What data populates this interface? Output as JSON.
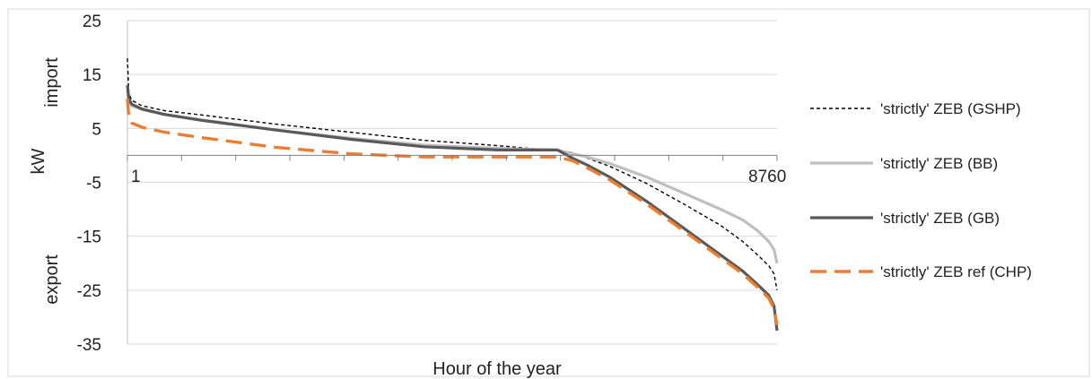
{
  "chart_data": {
    "type": "line",
    "title": "",
    "xlabel": "Hour of the year",
    "ylabel": "kW",
    "ylabel_upper": "import",
    "ylabel_lower": "export",
    "xlim": [
      1,
      8760
    ],
    "ylim": [
      -35,
      25
    ],
    "yticks": [
      25,
      15,
      5,
      -5,
      -15,
      -25,
      -35
    ],
    "xtick_labels": [
      "1",
      "8760"
    ],
    "grid": "horizontal",
    "legend_position": "right",
    "series": [
      {
        "name": "'strictly' ZEB (GSHP)",
        "color": "#000000",
        "style": "dotted",
        "points": [
          [
            1,
            18.0
          ],
          [
            20,
            11.5
          ],
          [
            60,
            10.2
          ],
          [
            200,
            9.2
          ],
          [
            500,
            8.3
          ],
          [
            1000,
            7.5
          ],
          [
            2000,
            5.8
          ],
          [
            3000,
            4.3
          ],
          [
            4000,
            2.8
          ],
          [
            5000,
            1.8
          ],
          [
            5500,
            1.2
          ],
          [
            5800,
            1.0
          ],
          [
            6000,
            0.5
          ],
          [
            6200,
            -0.5
          ],
          [
            6500,
            -2.0
          ],
          [
            7000,
            -5.2
          ],
          [
            7500,
            -9.0
          ],
          [
            8000,
            -13.0
          ],
          [
            8300,
            -16.0
          ],
          [
            8500,
            -18.5
          ],
          [
            8650,
            -20.5
          ],
          [
            8720,
            -22.0
          ],
          [
            8760,
            -25.0
          ]
        ]
      },
      {
        "name": "'strictly' ZEB (BB)",
        "color": "#bfbfbf",
        "style": "solid",
        "points": [
          [
            1,
            12.0
          ],
          [
            20,
            10.0
          ],
          [
            60,
            9.2
          ],
          [
            200,
            8.5
          ],
          [
            500,
            7.6
          ],
          [
            1000,
            6.6
          ],
          [
            2000,
            4.7
          ],
          [
            3000,
            3.2
          ],
          [
            4000,
            1.9
          ],
          [
            5000,
            1.3
          ],
          [
            5500,
            1.1
          ],
          [
            5800,
            1.0
          ],
          [
            6000,
            0.3
          ],
          [
            6200,
            -0.3
          ],
          [
            6500,
            -1.5
          ],
          [
            7000,
            -4.0
          ],
          [
            7500,
            -7.0
          ],
          [
            8000,
            -10.0
          ],
          [
            8300,
            -12.0
          ],
          [
            8500,
            -14.0
          ],
          [
            8650,
            -16.0
          ],
          [
            8720,
            -17.5
          ],
          [
            8760,
            -20.0
          ]
        ]
      },
      {
        "name": "'strictly' ZEB (GB)",
        "color": "#595959",
        "style": "solid",
        "points": [
          [
            1,
            13.0
          ],
          [
            20,
            10.5
          ],
          [
            60,
            9.5
          ],
          [
            200,
            8.6
          ],
          [
            500,
            7.6
          ],
          [
            1000,
            6.5
          ],
          [
            2000,
            4.7
          ],
          [
            3000,
            3.0
          ],
          [
            4000,
            1.6
          ],
          [
            5000,
            1.0
          ],
          [
            5500,
            1.0
          ],
          [
            5800,
            1.0
          ],
          [
            6000,
            -0.5
          ],
          [
            6200,
            -1.8
          ],
          [
            6500,
            -4.0
          ],
          [
            7000,
            -8.5
          ],
          [
            7500,
            -13.5
          ],
          [
            8000,
            -18.5
          ],
          [
            8300,
            -21.5
          ],
          [
            8500,
            -24.0
          ],
          [
            8650,
            -26.0
          ],
          [
            8720,
            -28.0
          ],
          [
            8760,
            -32.5
          ]
        ]
      },
      {
        "name": "'strictly' ZEB ref (CHP)",
        "color": "#ed7d31",
        "style": "dashed",
        "points": [
          [
            1,
            10.5
          ],
          [
            20,
            7.0
          ],
          [
            60,
            6.0
          ],
          [
            200,
            5.2
          ],
          [
            500,
            4.3
          ],
          [
            1000,
            3.3
          ],
          [
            2000,
            1.5
          ],
          [
            3000,
            0.3
          ],
          [
            4000,
            -0.3
          ],
          [
            5000,
            -0.3
          ],
          [
            5500,
            -0.3
          ],
          [
            5800,
            -0.3
          ],
          [
            6000,
            -1.0
          ],
          [
            6200,
            -2.3
          ],
          [
            6500,
            -4.5
          ],
          [
            7000,
            -9.0
          ],
          [
            7500,
            -14.0
          ],
          [
            8000,
            -19.0
          ],
          [
            8300,
            -22.0
          ],
          [
            8500,
            -24.5
          ],
          [
            8650,
            -26.5
          ],
          [
            8720,
            -28.5
          ],
          [
            8760,
            -31.5
          ]
        ]
      }
    ]
  }
}
